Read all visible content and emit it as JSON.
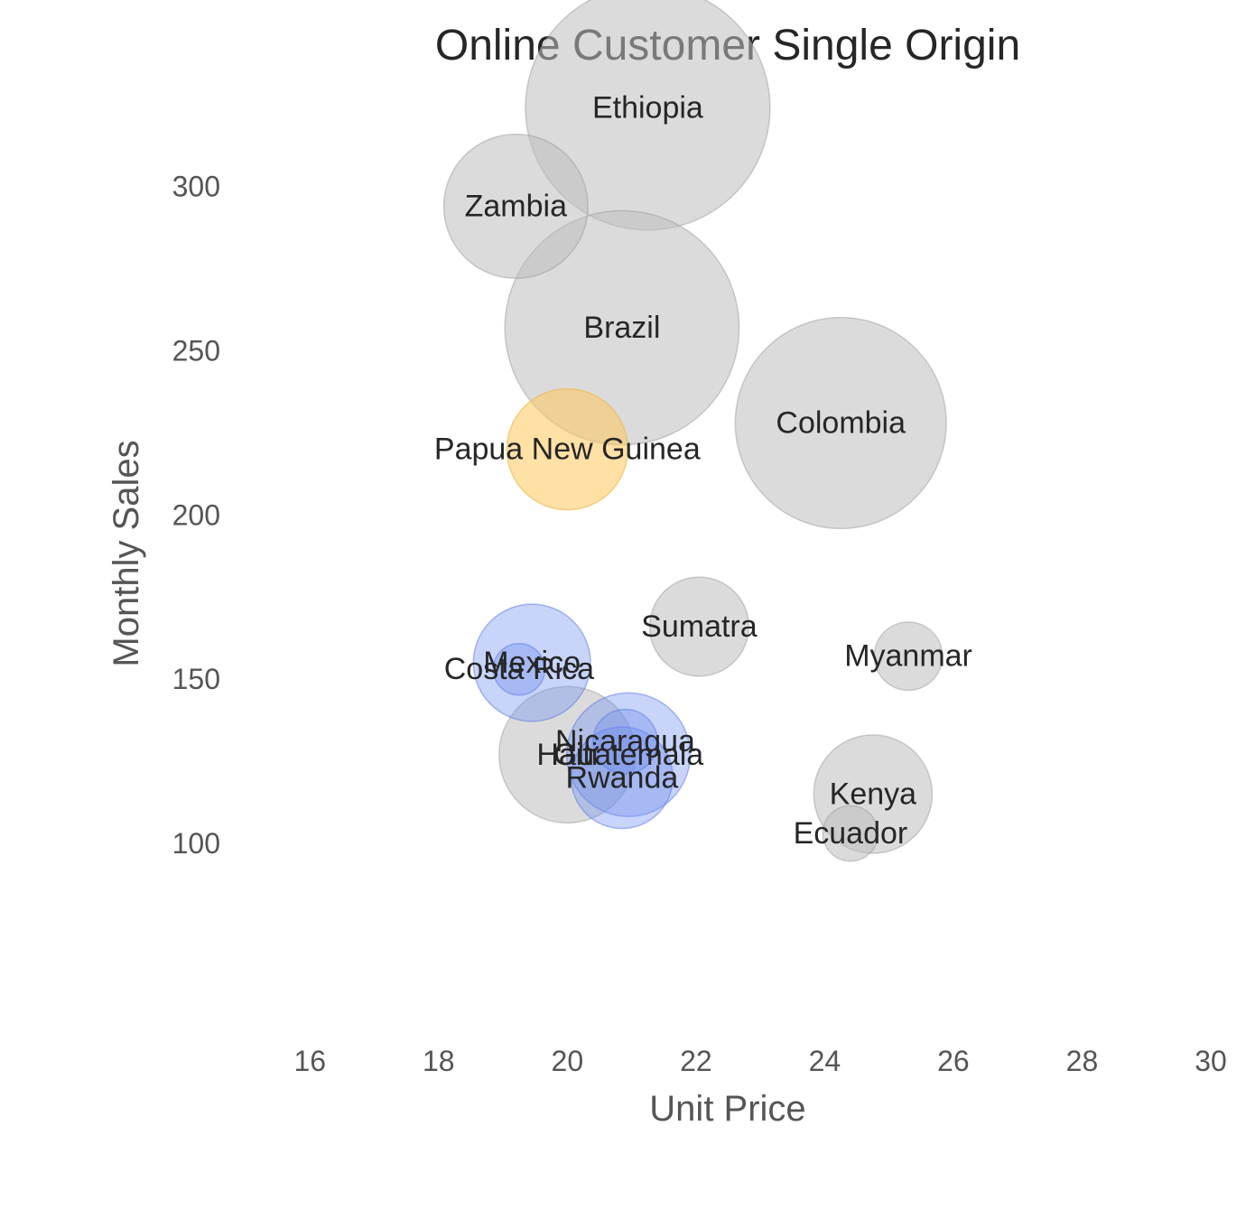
{
  "chart_data": {
    "type": "scatter",
    "title": "Online Customer Single Origin",
    "xlabel": "Unit Price",
    "ylabel": "Monthly Sales",
    "xlim": [
      15,
      30
    ],
    "ylim": [
      45,
      345
    ],
    "xticks": [
      "16",
      "18",
      "20",
      "22",
      "24",
      "26",
      "28",
      "30"
    ],
    "yticks": [
      "100",
      "150",
      "200",
      "250",
      "300"
    ],
    "grid": false,
    "legend": "none",
    "colors": {
      "gray": "#bdbdbd",
      "blue": "#6f8ff0",
      "orange": "#ffc95c"
    },
    "bubble_size_unit": "radius in data units of unit price",
    "points": [
      {
        "label": "Ethiopia",
        "x": 21.25,
        "y": 324,
        "size": 1.9,
        "color": "gray"
      },
      {
        "label": "Zambia",
        "x": 19.2,
        "y": 294,
        "size": 1.12,
        "color": "gray"
      },
      {
        "label": "Brazil",
        "x": 20.85,
        "y": 257,
        "size": 1.82,
        "color": "gray"
      },
      {
        "label": "Colombia",
        "x": 24.25,
        "y": 228,
        "size": 1.64,
        "color": "gray"
      },
      {
        "label": "Papua New Guinea",
        "x": 20.0,
        "y": 220,
        "size": 0.94,
        "color": "orange"
      },
      {
        "label": "Sumatra",
        "x": 22.05,
        "y": 166,
        "size": 0.77,
        "color": "gray"
      },
      {
        "label": "Myanmar",
        "x": 25.3,
        "y": 157,
        "size": 0.53,
        "color": "gray"
      },
      {
        "label": "Mexico",
        "x": 19.45,
        "y": 155,
        "size": 0.91,
        "color": "blue"
      },
      {
        "label": "Costa Rica",
        "x": 19.25,
        "y": 153,
        "size": 0.4,
        "color": "blue"
      },
      {
        "label": "Nicaragua",
        "x": 20.9,
        "y": 131,
        "size": 0.5,
        "color": "blue"
      },
      {
        "label": "Guatemala",
        "x": 20.95,
        "y": 127,
        "size": 0.96,
        "color": "blue"
      },
      {
        "label": "Haiti",
        "x": 20.0,
        "y": 127,
        "size": 1.06,
        "color": "gray"
      },
      {
        "label": "Rwanda",
        "x": 20.85,
        "y": 120,
        "size": 0.79,
        "color": "blue"
      },
      {
        "label": "Kenya",
        "x": 24.75,
        "y": 115,
        "size": 0.92,
        "color": "gray"
      },
      {
        "label": "Ecuador",
        "x": 24.4,
        "y": 103,
        "size": 0.43,
        "color": "gray"
      }
    ]
  }
}
